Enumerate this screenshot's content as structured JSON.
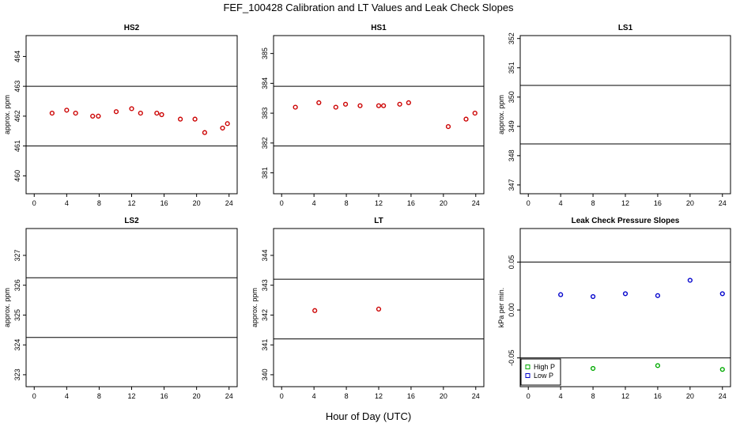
{
  "figure": {
    "title": "FEF_100428  Calibration and LT Values and Leak Check Slopes",
    "xlabel": "Hour of Day (UTC)"
  },
  "chart_data": [
    {
      "type": "scatter",
      "title": "HS2",
      "ylabel": "approx. ppm",
      "xlim": [
        -1,
        25
      ],
      "ylim": [
        459.4,
        464.7
      ],
      "xticks": [
        0,
        4,
        8,
        12,
        16,
        20,
        24
      ],
      "yticks": [
        460,
        461,
        462,
        463,
        464
      ],
      "hlines": [
        463,
        461
      ],
      "series": [
        {
          "color": "#cc0000",
          "x": [
            2.2,
            4.0,
            5.1,
            7.2,
            7.9,
            10.1,
            12.0,
            13.1,
            15.1,
            15.7,
            18.0,
            19.8,
            21.0,
            23.2,
            23.8
          ],
          "y": [
            462.1,
            462.2,
            462.1,
            462.0,
            462.0,
            462.15,
            462.25,
            462.1,
            462.1,
            462.05,
            461.9,
            461.9,
            461.45,
            461.6,
            461.75
          ]
        }
      ]
    },
    {
      "type": "scatter",
      "title": "HS1",
      "ylabel": "",
      "xlim": [
        -1,
        25
      ],
      "ylim": [
        380.3,
        385.6
      ],
      "xticks": [
        0,
        4,
        8,
        12,
        16,
        20,
        24
      ],
      "yticks": [
        381,
        382,
        383,
        384,
        385
      ],
      "hlines": [
        383.9,
        381.9
      ],
      "series": [
        {
          "color": "#cc0000",
          "x": [
            1.7,
            4.6,
            6.7,
            7.9,
            9.7,
            12.0,
            12.6,
            14.6,
            15.7,
            20.6,
            22.8,
            23.9
          ],
          "y": [
            383.2,
            383.35,
            383.2,
            383.3,
            383.25,
            383.25,
            383.25,
            383.3,
            383.35,
            382.55,
            382.8,
            383.0
          ]
        }
      ]
    },
    {
      "type": "scatter",
      "title": "LS1",
      "ylabel": "approx. ppm",
      "xlim": [
        -1,
        25
      ],
      "ylim": [
        346.7,
        352.1
      ],
      "xticks": [
        0,
        4,
        8,
        12,
        16,
        20,
        24
      ],
      "yticks": [
        347,
        348,
        349,
        350,
        351,
        352
      ],
      "hlines": [
        350.4,
        348.4
      ],
      "series": []
    },
    {
      "type": "scatter",
      "title": "LS2",
      "ylabel": "approx. ppm",
      "xlim": [
        -1,
        25
      ],
      "ylim": [
        322.6,
        327.9
      ],
      "xticks": [
        0,
        4,
        8,
        12,
        16,
        20,
        24
      ],
      "yticks": [
        323,
        324,
        325,
        326,
        327
      ],
      "hlines": [
        326.25,
        324.25
      ],
      "series": []
    },
    {
      "type": "scatter",
      "title": "LT",
      "ylabel": "approx. ppm",
      "xlim": [
        -1,
        25
      ],
      "ylim": [
        339.6,
        344.9
      ],
      "xticks": [
        0,
        4,
        8,
        12,
        16,
        20,
        24
      ],
      "yticks": [
        340,
        341,
        342,
        343,
        344
      ],
      "hlines": [
        343.2,
        341.2
      ],
      "series": [
        {
          "color": "#cc0000",
          "x": [
            4.1,
            12.0
          ],
          "y": [
            342.15,
            342.2
          ]
        }
      ]
    },
    {
      "type": "scatter",
      "title": "Leak Check Pressure Slopes",
      "ylabel": "kPa per min.",
      "xlim": [
        -1,
        25
      ],
      "ylim": [
        -0.08,
        0.085
      ],
      "xticks": [
        0,
        4,
        8,
        12,
        16,
        20,
        24
      ],
      "yticks": [
        -0.05,
        0.0,
        0.05
      ],
      "ytick_labels": [
        "-0.05",
        "0.00",
        "0.05"
      ],
      "hlines": [
        0.05,
        -0.05
      ],
      "legend": {
        "position": "bottom-left",
        "entries": [
          {
            "label": "High P",
            "color": "#00aa00"
          },
          {
            "label": "Low P",
            "color": "#0000cc"
          }
        ]
      },
      "series": [
        {
          "name": "High P",
          "color": "#00aa00",
          "x": [
            8.0,
            16.0,
            24.0
          ],
          "y": [
            -0.061,
            -0.058,
            -0.062
          ]
        },
        {
          "name": "Low P",
          "color": "#0000cc",
          "x": [
            4.0,
            8.0,
            12.0,
            16.0,
            20.0,
            24.0
          ],
          "y": [
            0.016,
            0.014,
            0.017,
            0.015,
            0.031,
            0.017
          ]
        }
      ]
    }
  ]
}
